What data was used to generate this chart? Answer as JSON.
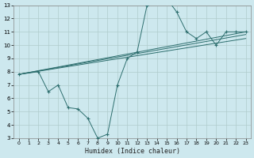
{
  "xlabel": "Humidex (Indice chaleur)",
  "bg_color": "#cde8ee",
  "grid_color": "#b0cccc",
  "line_color": "#2d6e6e",
  "xlim": [
    -0.5,
    23.5
  ],
  "ylim": [
    3,
    13
  ],
  "xticks": [
    0,
    1,
    2,
    3,
    4,
    5,
    6,
    7,
    8,
    9,
    10,
    11,
    12,
    13,
    14,
    15,
    16,
    17,
    18,
    19,
    20,
    21,
    22,
    23
  ],
  "yticks": [
    3,
    4,
    5,
    6,
    7,
    8,
    9,
    10,
    11,
    12,
    13
  ],
  "main_series": {
    "x": [
      0,
      2,
      3,
      4,
      5,
      6,
      7,
      8,
      9,
      10,
      11,
      12,
      13,
      14,
      15,
      16,
      17,
      18,
      19,
      20,
      21,
      22,
      23
    ],
    "y": [
      7.8,
      8.0,
      6.5,
      7.0,
      5.3,
      5.2,
      4.5,
      3.0,
      3.3,
      7.0,
      9.0,
      9.5,
      13.0,
      13.5,
      13.5,
      12.5,
      11.0,
      10.5,
      11.0,
      10.0,
      11.0,
      11.0,
      11.0
    ]
  },
  "straight_lines": [
    {
      "x": [
        0,
        23
      ],
      "y": [
        7.8,
        11.0
      ]
    },
    {
      "x": [
        0,
        23
      ],
      "y": [
        7.8,
        10.8
      ]
    },
    {
      "x": [
        0,
        23
      ],
      "y": [
        7.8,
        10.5
      ]
    }
  ]
}
